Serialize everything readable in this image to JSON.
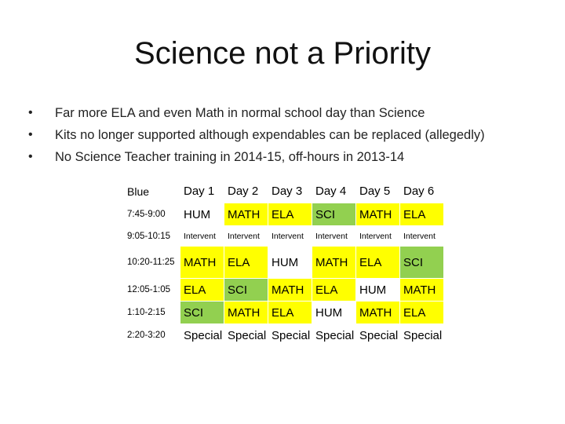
{
  "title": "Science not a Priority",
  "bullets": [
    "Far more ELA and even Math in normal school day than Science",
    "Kits no longer supported although expendables can be replaced (allegedly)",
    "No Science Teacher training in 2014-15, off-hours in 2013-14"
  ],
  "bullet_marker": "•",
  "table": {
    "corner": "Blue",
    "days": [
      "Day 1",
      "Day 2",
      "Day 3",
      "Day 4",
      "Day 5",
      "Day 6"
    ],
    "rows": [
      {
        "time": "7:45-9:00",
        "cells": [
          "HUM",
          "MATH",
          "ELA",
          "SCI",
          "MATH",
          "ELA"
        ]
      },
      {
        "time": "9:05-10:15",
        "cells": [
          "Intervent",
          "Intervent",
          "Intervent",
          "Intervent",
          "Intervent",
          "Intervent"
        ]
      },
      {
        "time": "10:20-11:25",
        "cells": [
          "MATH",
          "ELA",
          "HUM",
          "MATH",
          "ELA",
          "SCI"
        ]
      },
      {
        "time": "12:05-1:05",
        "cells": [
          "ELA",
          "SCI",
          "MATH",
          "ELA",
          "HUM",
          "MATH"
        ]
      },
      {
        "time": "1:10-2:15",
        "cells": [
          "SCI",
          "MATH",
          "ELA",
          "HUM",
          "MATH",
          "ELA"
        ]
      },
      {
        "time": "2:20-3:20",
        "cells": [
          "Special",
          "Special",
          "Special",
          "Special",
          "Special",
          "Special"
        ]
      }
    ]
  },
  "colors": {
    "math": "#ffff00",
    "ela": "#ffff00",
    "sci": "#92d050",
    "hum": "#ffffff"
  }
}
